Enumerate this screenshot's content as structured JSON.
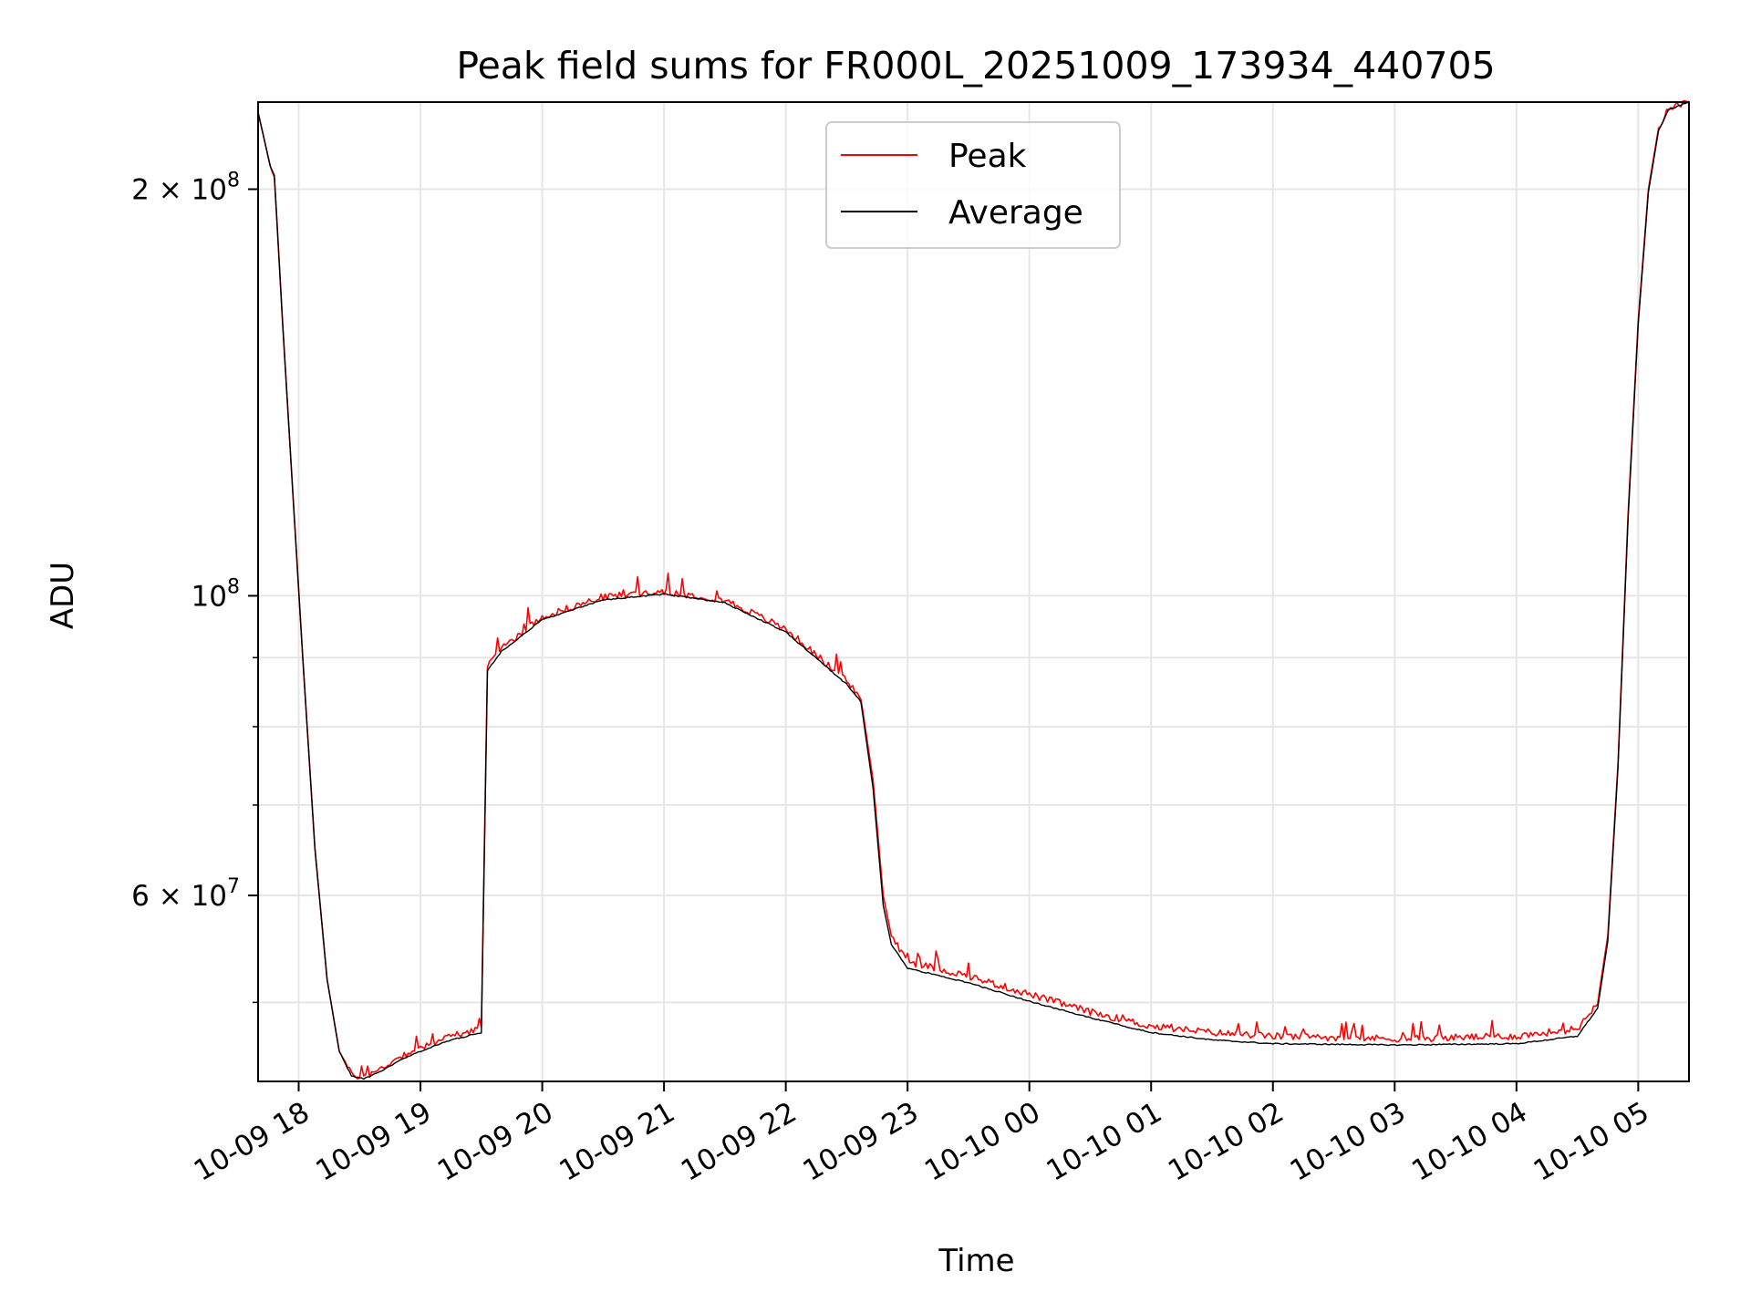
{
  "chart_data": {
    "type": "line",
    "title": "Peak field sums for FR000L_20251009_173934_440705",
    "xlabel": "Time",
    "ylabel": "ADU",
    "x_axis": {
      "type": "datetime",
      "range": [
        "2025-10-09T17:40",
        "2025-10-10T05:25"
      ],
      "ticks": [
        {
          "value": "2025-10-09T18:00",
          "label": "10-09 18"
        },
        {
          "value": "2025-10-09T19:00",
          "label": "10-09 19"
        },
        {
          "value": "2025-10-09T20:00",
          "label": "10-09 20"
        },
        {
          "value": "2025-10-09T21:00",
          "label": "10-09 21"
        },
        {
          "value": "2025-10-09T22:00",
          "label": "10-09 22"
        },
        {
          "value": "2025-10-09T23:00",
          "label": "10-09 23"
        },
        {
          "value": "2025-10-10T00:00",
          "label": "10-10 00"
        },
        {
          "value": "2025-10-10T01:00",
          "label": "10-10 01"
        },
        {
          "value": "2025-10-10T02:00",
          "label": "10-10 02"
        },
        {
          "value": "2025-10-10T03:00",
          "label": "10-10 03"
        },
        {
          "value": "2025-10-10T04:00",
          "label": "10-10 04"
        },
        {
          "value": "2025-10-10T05:00",
          "label": "10-10 05"
        }
      ]
    },
    "y_axis": {
      "scale": "log",
      "range": [
        43700000,
        232000000
      ],
      "major_ticks": [
        {
          "value": 60000000,
          "mantissa": "6",
          "exponent": "7"
        },
        {
          "value": 100000000,
          "mantissa": "",
          "exponent": "8"
        },
        {
          "value": 200000000,
          "mantissa": "2",
          "exponent": "8"
        }
      ],
      "minor_ticks": [
        50000000,
        70000000,
        80000000,
        90000000
      ]
    },
    "grid": true,
    "legend": {
      "position": "top-center"
    },
    "series": [
      {
        "name": "Peak",
        "color": "#ff0000",
        "noise_amplitude": 0.012,
        "points": [
          [
            "2025-10-09T17:40",
            228000000
          ],
          [
            "2025-10-09T17:46",
            208000000
          ],
          [
            "2025-10-09T17:48",
            205000000
          ],
          [
            "2025-10-09T17:52",
            160000000
          ],
          [
            "2025-10-09T17:57",
            120000000
          ],
          [
            "2025-10-09T18:02",
            90000000
          ],
          [
            "2025-10-09T18:08",
            65000000
          ],
          [
            "2025-10-09T18:14",
            52000000
          ],
          [
            "2025-10-09T18:20",
            46000000
          ],
          [
            "2025-10-09T18:26",
            44200000
          ],
          [
            "2025-10-09T18:32",
            44000000
          ],
          [
            "2025-10-09T18:40",
            44600000
          ],
          [
            "2025-10-09T18:50",
            45600000
          ],
          [
            "2025-10-09T19:00",
            46300000
          ],
          [
            "2025-10-09T19:15",
            47200000
          ],
          [
            "2025-10-09T19:28",
            47800000
          ],
          [
            "2025-10-09T19:30",
            48000000
          ],
          [
            "2025-10-09T19:33",
            88500000
          ],
          [
            "2025-10-09T19:40",
            91500000
          ],
          [
            "2025-10-09T20:00",
            96500000
          ],
          [
            "2025-10-09T20:30",
            99800000
          ],
          [
            "2025-10-09T21:00",
            100800000
          ],
          [
            "2025-10-09T21:30",
            99300000
          ],
          [
            "2025-10-09T22:00",
            94500000
          ],
          [
            "2025-10-09T22:30",
            86500000
          ],
          [
            "2025-10-09T22:37",
            84000000
          ],
          [
            "2025-10-09T22:43",
            73000000
          ],
          [
            "2025-10-09T22:48",
            60000000
          ],
          [
            "2025-10-09T22:52",
            56000000
          ],
          [
            "2025-10-09T23:00",
            53600000
          ],
          [
            "2025-10-09T23:30",
            52300000
          ],
          [
            "2025-10-10T00:00",
            50700000
          ],
          [
            "2025-10-10T00:30",
            49200000
          ],
          [
            "2025-10-10T01:00",
            48000000
          ],
          [
            "2025-10-10T01:30",
            47500000
          ],
          [
            "2025-10-10T02:00",
            47200000
          ],
          [
            "2025-10-10T03:00",
            47000000
          ],
          [
            "2025-10-10T04:00",
            47200000
          ],
          [
            "2025-10-10T04:30",
            47800000
          ],
          [
            "2025-10-10T04:40",
            50000000
          ],
          [
            "2025-10-10T04:45",
            56000000
          ],
          [
            "2025-10-10T04:50",
            75000000
          ],
          [
            "2025-10-10T04:55",
            115000000
          ],
          [
            "2025-10-10T05:00",
            160000000
          ],
          [
            "2025-10-10T05:05",
            200000000
          ],
          [
            "2025-10-10T05:10",
            222000000
          ],
          [
            "2025-10-10T05:15",
            230000000
          ],
          [
            "2025-10-10T05:25",
            232000000
          ]
        ]
      },
      {
        "name": "Average",
        "color": "#000000",
        "noise_amplitude": 0.002,
        "points": [
          [
            "2025-10-09T17:40",
            228000000
          ],
          [
            "2025-10-09T17:46",
            208000000
          ],
          [
            "2025-10-09T17:48",
            205000000
          ],
          [
            "2025-10-09T17:52",
            160000000
          ],
          [
            "2025-10-09T17:57",
            120000000
          ],
          [
            "2025-10-09T18:02",
            90000000
          ],
          [
            "2025-10-09T18:08",
            65000000
          ],
          [
            "2025-10-09T18:14",
            52000000
          ],
          [
            "2025-10-09T18:20",
            46000000
          ],
          [
            "2025-10-09T18:26",
            44100000
          ],
          [
            "2025-10-09T18:32",
            43900000
          ],
          [
            "2025-10-09T18:40",
            44400000
          ],
          [
            "2025-10-09T18:50",
            45300000
          ],
          [
            "2025-10-09T19:00",
            46000000
          ],
          [
            "2025-10-09T19:15",
            46900000
          ],
          [
            "2025-10-09T19:28",
            47400000
          ],
          [
            "2025-10-09T19:30",
            47500000
          ],
          [
            "2025-10-09T19:33",
            88000000
          ],
          [
            "2025-10-09T19:40",
            91000000
          ],
          [
            "2025-10-09T20:00",
            96000000
          ],
          [
            "2025-10-09T20:30",
            99300000
          ],
          [
            "2025-10-09T21:00",
            100300000
          ],
          [
            "2025-10-09T21:30",
            98800000
          ],
          [
            "2025-10-09T22:00",
            94000000
          ],
          [
            "2025-10-09T22:30",
            86000000
          ],
          [
            "2025-10-09T22:37",
            83500000
          ],
          [
            "2025-10-09T22:43",
            72000000
          ],
          [
            "2025-10-09T22:48",
            59000000
          ],
          [
            "2025-10-09T22:52",
            55200000
          ],
          [
            "2025-10-09T23:00",
            53000000
          ],
          [
            "2025-10-09T23:30",
            51700000
          ],
          [
            "2025-10-10T00:00",
            50100000
          ],
          [
            "2025-10-10T00:30",
            48700000
          ],
          [
            "2025-10-10T01:00",
            47500000
          ],
          [
            "2025-10-10T01:30",
            46900000
          ],
          [
            "2025-10-10T02:00",
            46600000
          ],
          [
            "2025-10-10T03:00",
            46500000
          ],
          [
            "2025-10-10T04:00",
            46600000
          ],
          [
            "2025-10-10T04:30",
            47200000
          ],
          [
            "2025-10-10T04:40",
            49500000
          ],
          [
            "2025-10-10T04:45",
            55500000
          ],
          [
            "2025-10-10T04:50",
            74500000
          ],
          [
            "2025-10-10T04:55",
            114000000
          ],
          [
            "2025-10-10T05:00",
            159000000
          ],
          [
            "2025-10-10T05:05",
            199000000
          ],
          [
            "2025-10-10T05:10",
            221000000
          ],
          [
            "2025-10-10T05:15",
            229000000
          ],
          [
            "2025-10-10T05:25",
            232000000
          ]
        ]
      }
    ]
  }
}
